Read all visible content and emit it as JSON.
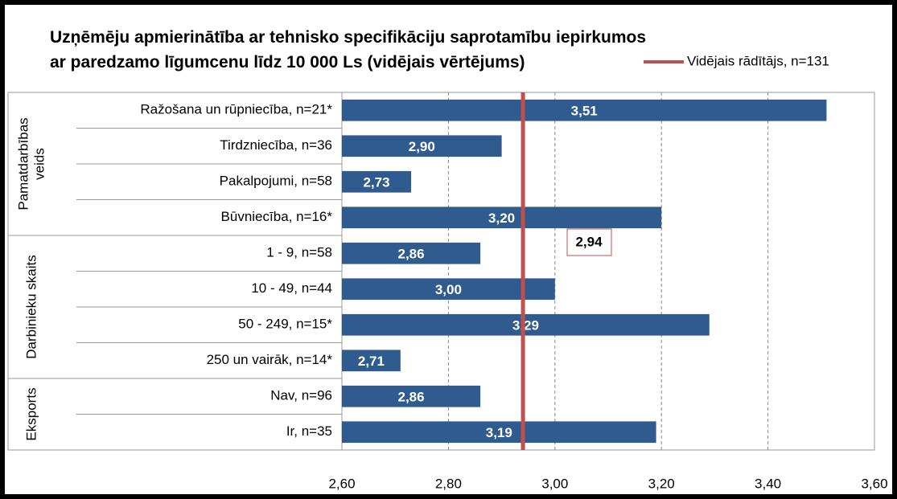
{
  "chart_data": {
    "type": "bar",
    "orientation": "horizontal",
    "title": [
      "Uzņēmēju apmierinātība ar tehnisko specifikāciju saprotamību iepirkumos",
      "ar paredzamo līgumcenu līdz 10 000 Ls (vidējais vērtējums)"
    ],
    "categories": [
      "Ražošana un rūpniecība,  n=21*",
      "Tirdzniecība, n=36",
      "Pakalpojumi,  n=58",
      "Būvniecība, n=16*",
      "1 - 9, n=58",
      "10 - 49, n=44",
      "50 - 249, n=15*",
      "250 un vairāk,  n=14*",
      "Nav, n=96",
      "Ir, n=35"
    ],
    "groups": [
      {
        "label": [
          "Pamatdarbības",
          "veids"
        ],
        "size": 4
      },
      {
        "label": [
          "Darbinieku skaits"
        ],
        "size": 4
      },
      {
        "label": [
          "Eksports"
        ],
        "size": 2
      }
    ],
    "values": [
      3.51,
      2.9,
      2.73,
      3.2,
      2.86,
      3.0,
      3.29,
      2.71,
      2.86,
      3.19
    ],
    "value_labels": [
      "3,51",
      "2,90",
      "2,73",
      "3,20",
      "2,86",
      "3,00",
      "3,29",
      "2,71",
      "2,86",
      "3,19"
    ],
    "color": "#2f5b8f",
    "reference_line": {
      "name": "Vidējais rādītājs, n=131",
      "value": 2.94,
      "label": "2,94",
      "color": "#c0504d"
    },
    "xlim": [
      2.6,
      3.6
    ],
    "xticks": [
      {
        "value": 2.6,
        "label": "2,60"
      },
      {
        "value": 2.8,
        "label": "2,80"
      },
      {
        "value": 3.0,
        "label": "3,00"
      },
      {
        "value": 3.2,
        "label": "3,20"
      },
      {
        "value": 3.4,
        "label": "3,40"
      },
      {
        "value": 3.6,
        "label": "3,60"
      }
    ],
    "grid": true
  }
}
